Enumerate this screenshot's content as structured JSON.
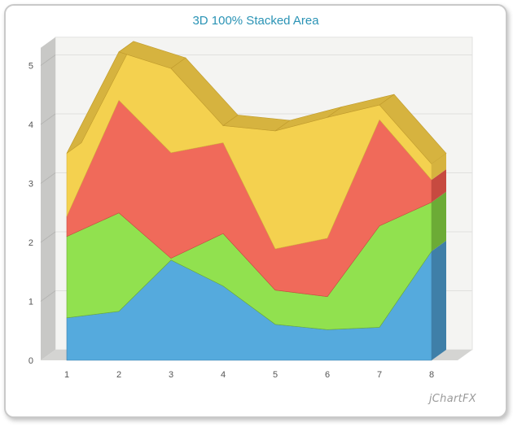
{
  "chart_data": {
    "type": "area",
    "title": "3D 100% Stacked Area",
    "categories": [
      "1",
      "2",
      "3",
      "4",
      "5",
      "6",
      "7",
      "8"
    ],
    "y_ticks": [
      "0",
      "1",
      "2",
      "3",
      "4",
      "5"
    ],
    "ylim": [
      0,
      5.3
    ],
    "grid": true,
    "legend": "none",
    "series": [
      {
        "color": "#55aadd",
        "values": [
          0.72,
          0.83,
          1.7,
          1.26,
          0.61,
          0.52,
          0.56,
          1.85
        ]
      },
      {
        "color": "#91e14f",
        "values": [
          1.38,
          1.67,
          0.03,
          0.89,
          0.58,
          0.56,
          1.72,
          0.83
        ]
      },
      {
        "color": "#f06a5a",
        "values": [
          0.34,
          1.91,
          1.79,
          1.54,
          0.7,
          0.99,
          1.8,
          0.38
        ]
      },
      {
        "color": "#f4d14f",
        "values": [
          1.07,
          0.82,
          1.43,
          0.29,
          2.0,
          2.05,
          0.25,
          0.27
        ]
      }
    ],
    "side_colors": [
      "#3f7fa8",
      "#6cab36",
      "#c74a40",
      "#d6b33f"
    ]
  },
  "branding": {
    "logo_text": "jChartFX"
  }
}
